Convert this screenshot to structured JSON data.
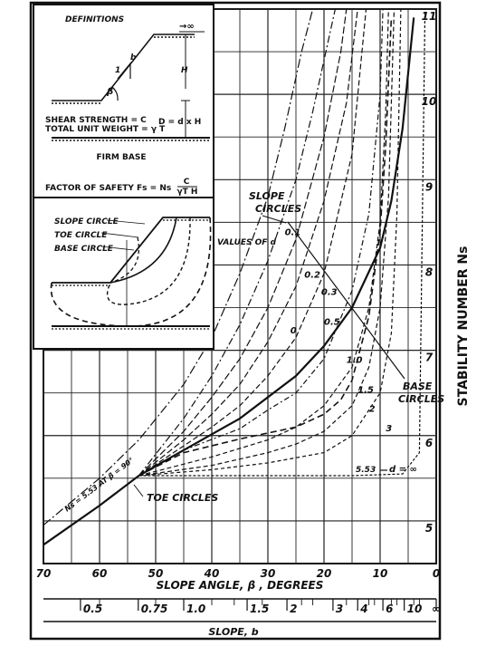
{
  "chart_data": {
    "type": "line",
    "title": "",
    "xlabel": "SLOPE ANGLE, β , DEGREES",
    "ylabel": "STABILITY NUMBER  Ns",
    "x_direction": "decreasing",
    "xlim": [
      70,
      0
    ],
    "ylim": [
      4.5,
      11
    ],
    "x_ticks": [
      70,
      60,
      50,
      40,
      30,
      20,
      10,
      0
    ],
    "y_ticks": [
      5,
      6,
      7,
      8,
      9,
      10,
      11
    ],
    "grid": true,
    "secondary_x": {
      "label": "SLOPE, b",
      "ticks": [
        "0.5",
        "0.75",
        "1.0",
        "1.5",
        "2",
        "3",
        "4",
        "6",
        "10",
        "∞"
      ],
      "tick_angles": [
        63.4,
        53.1,
        45,
        33.7,
        26.6,
        18.4,
        14,
        9.5,
        5.7,
        0
      ]
    },
    "series": [
      {
        "name": "TOE CIRCLES",
        "style": "solid",
        "x": [
          70,
          60,
          53,
          45,
          35,
          25,
          20,
          15,
          10,
          8,
          6,
          4
        ],
        "y": [
          4.72,
          5.18,
          5.53,
          5.83,
          6.2,
          6.7,
          7.05,
          7.5,
          8.2,
          8.75,
          9.6,
          10.9
        ]
      },
      {
        "name": "BASE CIRCLES",
        "style": "dashed",
        "x": [
          53,
          45,
          35,
          25,
          20,
          17,
          15,
          12,
          10,
          9,
          8
        ],
        "y": [
          5.53,
          5.8,
          5.96,
          6.1,
          6.25,
          6.42,
          6.65,
          7.4,
          8.4,
          9.4,
          10.9
        ]
      }
    ],
    "d_curves": [
      {
        "d": "0",
        "x": [
          70,
          60,
          53,
          45,
          40,
          35,
          30,
          27,
          24,
          22
        ],
        "y": [
          4.95,
          5.5,
          5.95,
          6.6,
          7.15,
          7.9,
          8.8,
          9.6,
          10.5,
          11.0
        ]
      },
      {
        "d": "0.1",
        "x": [
          53,
          45,
          40,
          35,
          30,
          25,
          22,
          20,
          18
        ],
        "y": [
          5.53,
          6.2,
          6.7,
          7.3,
          8.05,
          9.0,
          9.8,
          10.4,
          11.0
        ]
      },
      {
        "d": "0.2",
        "x": [
          53,
          45,
          40,
          35,
          30,
          25,
          20,
          17,
          16
        ],
        "y": [
          5.53,
          6.05,
          6.45,
          6.9,
          7.5,
          8.3,
          9.5,
          10.5,
          11.0
        ]
      },
      {
        "d": "0.3",
        "x": [
          53,
          45,
          40,
          35,
          30,
          25,
          20,
          16,
          14
        ],
        "y": [
          5.53,
          5.95,
          6.25,
          6.6,
          7.1,
          7.75,
          8.75,
          9.9,
          11.0
        ]
      },
      {
        "d": "0.5",
        "x": [
          53,
          45,
          40,
          35,
          30,
          25,
          20,
          15,
          12.5
        ],
        "y": [
          5.53,
          5.88,
          6.1,
          6.35,
          6.7,
          7.15,
          7.9,
          9.3,
          11.0
        ]
      },
      {
        "d": "1.0",
        "x": [
          53,
          45,
          35,
          30,
          25,
          20,
          15,
          12,
          10,
          9.5
        ],
        "y": [
          5.53,
          5.83,
          6.08,
          6.3,
          6.5,
          6.9,
          7.7,
          8.6,
          10.0,
          11.0
        ]
      },
      {
        "d": "1.5",
        "x": [
          53,
          40,
          30,
          25,
          20,
          15,
          12,
          10,
          9,
          8.5
        ],
        "y": [
          5.53,
          5.75,
          5.95,
          6.1,
          6.35,
          6.8,
          7.5,
          8.5,
          9.8,
          11.0
        ]
      },
      {
        "d": "2",
        "x": [
          53,
          40,
          30,
          25,
          20,
          15,
          12,
          10,
          8.5,
          7.5
        ],
        "y": [
          5.53,
          5.65,
          5.8,
          5.9,
          6.05,
          6.35,
          6.8,
          7.5,
          8.8,
          11.0
        ]
      },
      {
        "d": "3",
        "x": [
          53,
          40,
          30,
          20,
          15,
          10,
          8,
          7,
          6.3
        ],
        "y": [
          5.53,
          5.6,
          5.68,
          5.8,
          6.0,
          6.5,
          7.2,
          8.6,
          11.0
        ]
      },
      {
        "d": "5.53",
        "x": [
          53,
          30,
          15,
          6,
          3,
          2
        ],
        "y": [
          5.53,
          5.53,
          5.53,
          5.55,
          5.8,
          11.0
        ]
      }
    ],
    "annotations": {
      "slope_circles": "SLOPE\nCIRCLES",
      "values_of_d": "VALUES OF d",
      "base_circles": "BASE\nCIRCLES",
      "toe_circles": "TOE CIRCLES",
      "ns_note": "Ns = 5.53 AT β = 90°",
      "d_inf": "d = ∞",
      "d_553": "5.53",
      "slope_arrow": "SLOPE CIRCLES → BASE CIRCLES"
    }
  },
  "inset": {
    "definitions_title": "DEFINITIONS",
    "infinity": "→∞",
    "b_label": "b",
    "one_label": "1",
    "h_label": "H",
    "beta_label": "β",
    "shear_strength": "SHEAR STRENGTH = C",
    "unit_weight": "TOTAL UNIT WEIGHT = γ T",
    "depth_label": "D = d x H",
    "firm_base": "FIRM BASE",
    "fs_label": "FACTOR OF SAFETY Fs  =  Ns",
    "fs_num": "C",
    "fs_den": "γT H",
    "slope_circle": "SLOPE CIRCLE",
    "toe_circle": "TOE CIRCLE",
    "base_circle": "BASE CIRCLE"
  },
  "colors": {
    "ink": "#111111",
    "background": "#ffffff"
  }
}
